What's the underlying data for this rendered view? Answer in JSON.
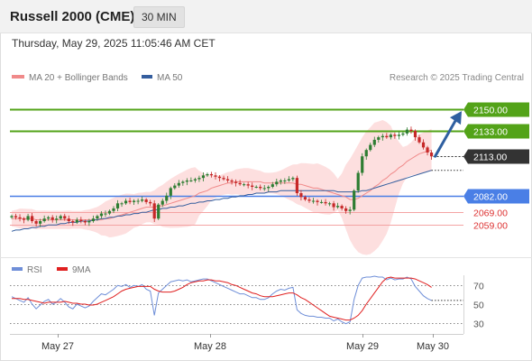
{
  "header": {
    "title": "Russell 2000 (CME)",
    "interval": "30 MIN",
    "datetime": "Thursday, May 29, 2025 11:05:46 AM CET",
    "copyright": "Research © 2025 Trading Central"
  },
  "legend": {
    "ma20_label": "MA 20 + Bollinger Bands",
    "ma50_label": "MA 50",
    "rsi_label": "RSI",
    "rsi_ma_label": "9MA"
  },
  "colors": {
    "up": "#2e7d32",
    "down": "#c62828",
    "ma20": "#f08a8a",
    "ma50": "#355e9e",
    "band": "#fcd4d4",
    "resistance": "#53a318",
    "support": "#4a7fe6",
    "support_light": "#f4a3a3",
    "rsi": "#6f8fd8",
    "rsi_ma": "#e02020",
    "arrow": "#2f5fa0"
  },
  "chart_data": [
    {
      "type": "candlestick",
      "title": "Russell 2000 (CME)",
      "x_ticks": [
        "May 27",
        "May 28",
        "May 29",
        "May 30"
      ],
      "ylim": [
        2040,
        2165
      ],
      "key_levels": [
        {
          "label": "2150.00",
          "value": 2150.0,
          "kind": "resistance"
        },
        {
          "label": "2133.00",
          "value": 2133.0,
          "kind": "resistance"
        },
        {
          "label": "2113.00",
          "value": 2113.0,
          "kind": "last"
        },
        {
          "label": "2082.00",
          "value": 2082.0,
          "kind": "support"
        },
        {
          "label": "2069.00",
          "value": 2069.0,
          "kind": "support"
        },
        {
          "label": "2059.00",
          "value": 2059.0,
          "kind": "support"
        }
      ],
      "close": [
        2066,
        2065,
        2064,
        2063,
        2066,
        2062,
        2060,
        2062,
        2064,
        2065,
        2063,
        2064,
        2066,
        2064,
        2062,
        2061,
        2063,
        2062,
        2061,
        2062,
        2064,
        2066,
        2068,
        2068,
        2070,
        2072,
        2076,
        2076,
        2078,
        2077,
        2078,
        2078,
        2079,
        2077,
        2076,
        2064,
        2075,
        2078,
        2082,
        2088,
        2090,
        2092,
        2093,
        2094,
        2094,
        2095,
        2096,
        2098,
        2099,
        2098,
        2097,
        2096,
        2095,
        2094,
        2093,
        2092,
        2091,
        2091,
        2090,
        2089,
        2089,
        2088,
        2088,
        2089,
        2091,
        2093,
        2094,
        2094,
        2095,
        2096,
        2084,
        2081,
        2079,
        2078,
        2078,
        2077,
        2077,
        2076,
        2076,
        2073,
        2074,
        2072,
        2070,
        2071,
        2086,
        2100,
        2113,
        2118,
        2122,
        2126,
        2128,
        2129,
        2128,
        2130,
        2129,
        2130,
        2131,
        2134,
        2133,
        2128,
        2124,
        2120,
        2116,
        2113
      ],
      "ma20": [
        2064,
        2064,
        2064,
        2064,
        2064,
        2064,
        2063,
        2063,
        2063,
        2063,
        2063,
        2063,
        2063,
        2063,
        2063,
        2063,
        2063,
        2063,
        2063,
        2063,
        2063,
        2063,
        2063,
        2064,
        2064,
        2065,
        2066,
        2067,
        2068,
        2069,
        2070,
        2071,
        2072,
        2073,
        2073,
        2073,
        2074,
        2074,
        2075,
        2076,
        2077,
        2078,
        2079,
        2080,
        2081,
        2082,
        2084,
        2085,
        2086,
        2088,
        2089,
        2090,
        2091,
        2092,
        2092,
        2093,
        2093,
        2093,
        2093,
        2093,
        2093,
        2093,
        2092,
        2092,
        2092,
        2092,
        2092,
        2092,
        2092,
        2092,
        2091,
        2091,
        2090,
        2089,
        2088,
        2088,
        2087,
        2086,
        2085,
        2084,
        2083,
        2082,
        2081,
        2079,
        2079,
        2080,
        2082,
        2084,
        2086,
        2089,
        2091,
        2094,
        2096,
        2099,
        2101,
        2104,
        2106,
        2109,
        2111,
        2113,
        2115,
        2116,
        2117,
        2118
      ],
      "ma50": [
        2054,
        2055,
        2055,
        2056,
        2056,
        2057,
        2057,
        2058,
        2058,
        2059,
        2059,
        2059,
        2060,
        2060,
        2061,
        2061,
        2061,
        2062,
        2062,
        2062,
        2063,
        2063,
        2064,
        2064,
        2065,
        2065,
        2066,
        2066,
        2067,
        2067,
        2068,
        2068,
        2069,
        2069,
        2070,
        2071,
        2071,
        2072,
        2072,
        2073,
        2073,
        2074,
        2074,
        2075,
        2076,
        2076,
        2077,
        2077,
        2078,
        2078,
        2079,
        2079,
        2080,
        2080,
        2081,
        2081,
        2082,
        2082,
        2083,
        2083,
        2084,
        2084,
        2084,
        2085,
        2085,
        2085,
        2086,
        2086,
        2086,
        2086,
        2086,
        2086,
        2086,
        2086,
        2086,
        2086,
        2086,
        2086,
        2086,
        2086,
        2085,
        2085,
        2085,
        2085,
        2085,
        2085,
        2086,
        2086,
        2087,
        2088,
        2089,
        2090,
        2091,
        2092,
        2093,
        2094,
        2095,
        2096,
        2097,
        2098,
        2099,
        2100,
        2101,
        2102
      ]
    },
    {
      "type": "line",
      "title": "RSI",
      "ylim": [
        20,
        80
      ],
      "y_ticks": [
        70,
        50,
        30
      ],
      "series": [
        {
          "name": "RSI",
          "values": [
            58,
            56,
            54,
            52,
            57,
            50,
            45,
            49,
            53,
            55,
            50,
            52,
            56,
            52,
            47,
            45,
            50,
            48,
            46,
            48,
            53,
            57,
            61,
            60,
            63,
            66,
            70,
            69,
            71,
            68,
            70,
            69,
            71,
            66,
            64,
            38,
            62,
            66,
            70,
            74,
            75,
            76,
            75,
            76,
            74,
            75,
            76,
            77,
            77,
            75,
            73,
            71,
            69,
            67,
            65,
            63,
            61,
            61,
            59,
            57,
            57,
            55,
            55,
            57,
            61,
            64,
            66,
            65,
            67,
            68,
            44,
            40,
            38,
            37,
            37,
            36,
            36,
            35,
            35,
            32,
            34,
            31,
            29,
            31,
            55,
            70,
            78,
            79,
            79,
            80,
            79,
            79,
            76,
            78,
            76,
            77,
            77,
            79,
            77,
            69,
            64,
            59,
            56,
            54
          ]
        },
        {
          "name": "9MA",
          "values": [
            56,
            56,
            56,
            55,
            55,
            54,
            53,
            52,
            51,
            52,
            52,
            52,
            52,
            53,
            52,
            51,
            51,
            50,
            50,
            49,
            49,
            50,
            52,
            54,
            56,
            58,
            61,
            64,
            66,
            67,
            68,
            69,
            69,
            69,
            69,
            66,
            64,
            63,
            63,
            63,
            64,
            66,
            68,
            71,
            73,
            74,
            75,
            75,
            76,
            76,
            75,
            75,
            74,
            73,
            71,
            70,
            68,
            66,
            64,
            62,
            61,
            59,
            58,
            58,
            58,
            59,
            60,
            61,
            62,
            62,
            60,
            57,
            55,
            52,
            49,
            46,
            43,
            40,
            37,
            36,
            35,
            34,
            33,
            33,
            35,
            38,
            43,
            50,
            56,
            62,
            68,
            74,
            78,
            79,
            78,
            78,
            78,
            78,
            78,
            77,
            75,
            73,
            71,
            68
          ]
        }
      ]
    }
  ]
}
